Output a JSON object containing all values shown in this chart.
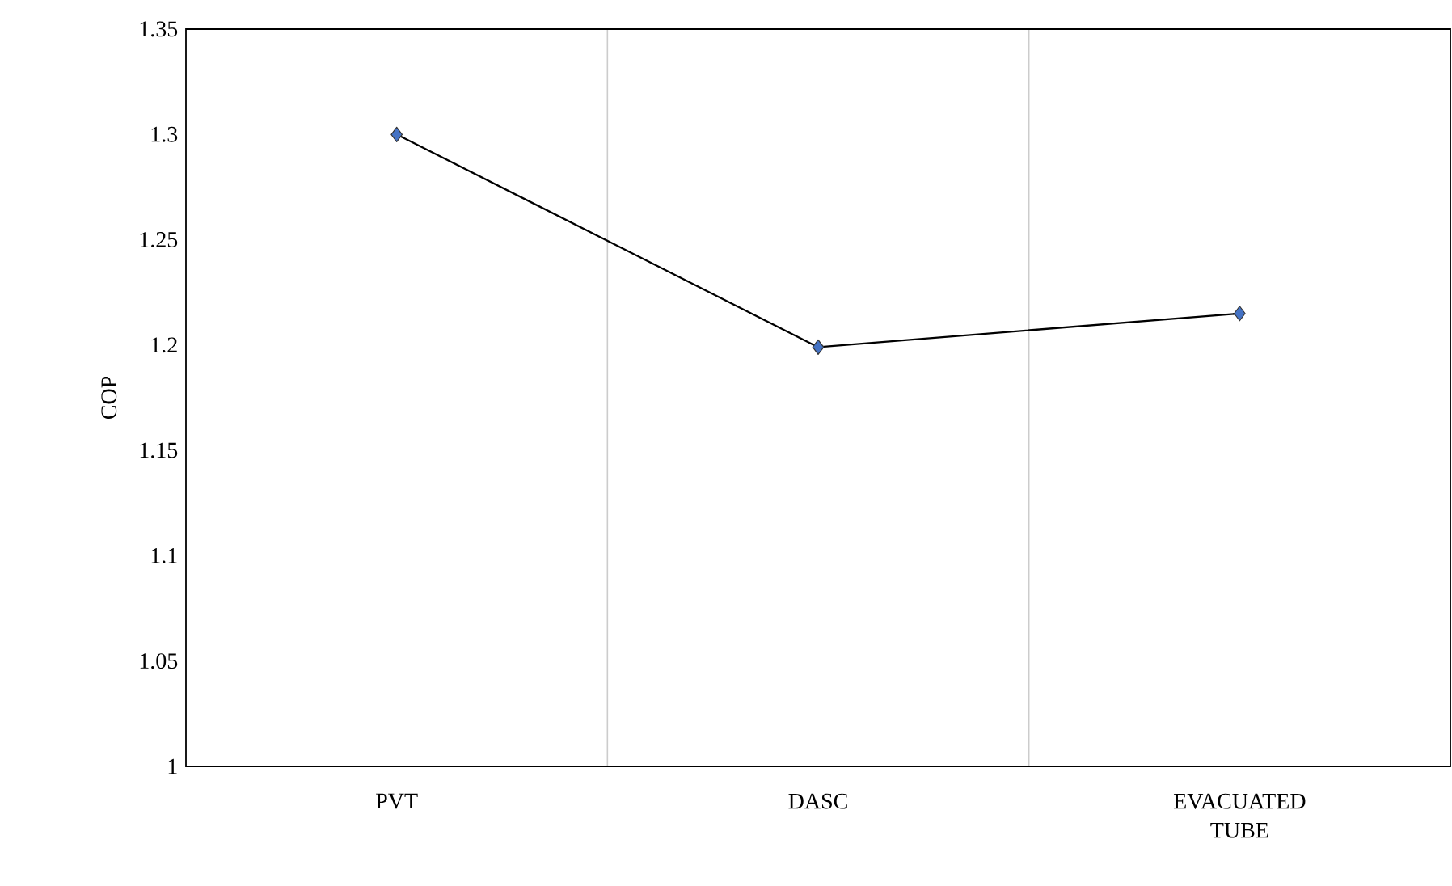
{
  "chart_data": {
    "type": "line",
    "ylabel": "COP",
    "categories": [
      "PVT",
      "DASC",
      "EVACUATED TUBE"
    ],
    "series": [
      {
        "color": "#4472c4",
        "values": [
          1.3,
          1.199,
          1.215
        ]
      }
    ],
    "marker": "diamond",
    "line_style": "solid",
    "ylim": [
      1,
      1.35
    ],
    "yticks": [
      1,
      1.05,
      1.1,
      1.15,
      1.2,
      1.25,
      1.3,
      1.35
    ],
    "grid": "x"
  }
}
